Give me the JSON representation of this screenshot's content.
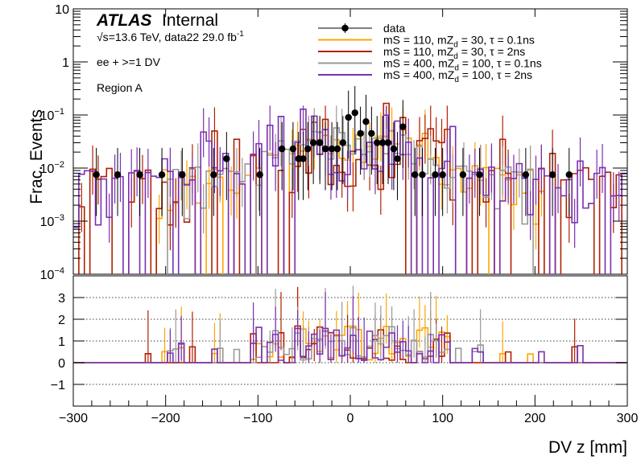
{
  "chart_data": {
    "type": "step-histogram-with-ratio",
    "experiment_label": "ATLAS",
    "experiment_status": "Internal",
    "energy_sqrt_s": "√s",
    "energy_label": "=13.6 TeV, data22 29.0 fb",
    "lumi_exponent": "-1",
    "selection_label": "ee + >=1 DV",
    "region_label": "Region A",
    "xlabel": "DV z [mm]",
    "ylabel": "Frac. Events",
    "xlim": [
      -300,
      300
    ],
    "ylim_log": [
      0.0001,
      10
    ],
    "ratio_ylim": [
      -2,
      4
    ],
    "x_ticks": [
      "−300",
      "−200",
      "−100",
      "0",
      "100",
      "200",
      "300"
    ],
    "x_tick_values": [
      -300,
      -200,
      -100,
      0,
      100,
      200,
      300
    ],
    "y_ticks_main": [
      {
        "base": "10",
        "exp": "",
        "value": 10
      },
      {
        "base": "1",
        "exp": "",
        "value": 1
      },
      {
        "base": "10",
        "exp": "−1",
        "value": 0.1
      },
      {
        "base": "10",
        "exp": "−2",
        "value": 0.01
      },
      {
        "base": "10",
        "exp": "−3",
        "value": 0.001
      },
      {
        "base": "10",
        "exp": "−4",
        "value": 0.0001
      }
    ],
    "ratio_y_ticks": [
      "−1",
      "0",
      "1",
      "2",
      "3"
    ],
    "ratio_y_tick_values": [
      -1,
      0,
      1,
      2,
      3
    ],
    "legend": [
      {
        "name": "data",
        "style": "marker",
        "color": "#000000"
      },
      {
        "name": "mS = 110, mZ",
        "sub": "d",
        "rest": " = 30, τ = 0.1ns",
        "style": "line",
        "color": "#ffa500"
      },
      {
        "name": "mS = 110, mZ",
        "sub": "d",
        "rest": " = 30, τ = 2ns",
        "style": "line",
        "color": "#b22000"
      },
      {
        "name": "mS = 400, mZ",
        "sub": "d",
        "rest": " = 100, τ = 0.1ns",
        "style": "line",
        "color": "#999999"
      },
      {
        "name": "mS = 400, mZ",
        "sub": "d",
        "rest": " = 100, τ = 2ns",
        "style": "line",
        "color": "#7a30b0"
      }
    ],
    "data_points": {
      "x": [
        -275,
        -252,
        -228,
        -204,
        -182,
        -148,
        -134,
        -98,
        -74,
        -62,
        -56,
        -51,
        -46,
        -40,
        -33,
        -27,
        -20,
        -14,
        -8,
        -2,
        5,
        11,
        17,
        23,
        29,
        35,
        41,
        47,
        51,
        57,
        70,
        78,
        92,
        100,
        122,
        140,
        190,
        219,
        237
      ],
      "y": [
        0.0075,
        0.0075,
        0.0075,
        0.0075,
        0.0075,
        0.0075,
        0.015,
        0.0075,
        0.023,
        0.023,
        0.015,
        0.015,
        0.023,
        0.03,
        0.03,
        0.023,
        0.023,
        0.023,
        0.03,
        0.09,
        0.11,
        0.045,
        0.075,
        0.045,
        0.03,
        0.03,
        0.03,
        0.023,
        0.015,
        0.06,
        0.0075,
        0.0075,
        0.0075,
        0.0075,
        0.0075,
        0.0075,
        0.0075,
        0.0075,
        0.0075
      ]
    },
    "hist_x_range": [
      -300,
      300
    ],
    "hist_bin_width": 6,
    "hist_floor": 0.0001,
    "series": [
      {
        "name": "mS = 110, mZd = 30, τ = 0.1ns",
        "color": "#ffa500",
        "seed": 11,
        "center": 0.03,
        "sigma": 70,
        "noise": 0.45,
        "empty_outside": 210,
        "drop_fraction": 0.25
      },
      {
        "name": "mS = 110, mZd = 30, τ = 2ns",
        "color": "#b22000",
        "seed": 23,
        "center": 0.025,
        "sigma": 95,
        "noise": 0.9,
        "empty_outside": 300,
        "drop_fraction": 0.55
      },
      {
        "name": "mS = 400, mZd = 100, τ = 0.1ns",
        "color": "#999999",
        "seed": 37,
        "center": 0.03,
        "sigma": 60,
        "noise": 0.35,
        "empty_outside": 200,
        "drop_fraction": 0.15
      },
      {
        "name": "mS = 400, mZd = 100, τ = 2ns",
        "color": "#7a30b0",
        "seed": 51,
        "center": 0.024,
        "sigma": 100,
        "noise": 0.8,
        "empty_outside": 300,
        "drop_fraction": 0.3
      }
    ]
  }
}
